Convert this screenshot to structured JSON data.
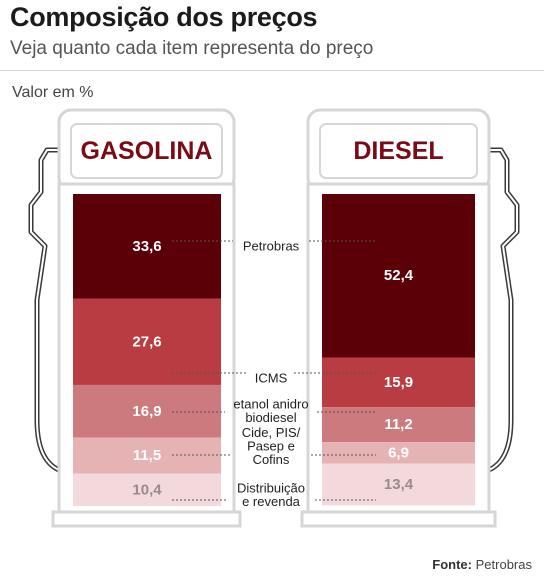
{
  "header": {
    "title": "Composição dos preços",
    "subtitle": "Veja quanto cada item representa do preço",
    "unit_label": "Valor em %",
    "source_prefix": "Fonte:",
    "source_name": "Petrobras"
  },
  "colors": {
    "pump_title": "#7a0a14",
    "pump_body": "#ffffff",
    "pump_border": "#d6d6d6",
    "leader_line": "#555555",
    "segments": [
      "#5c0008",
      "#b83c41",
      "#cc7a7d",
      "#e6b3b5",
      "#f3d9dc"
    ],
    "segment_text": [
      "#ffffff",
      "#ffffff",
      "#ffffff",
      "#ffffff",
      "#9a8a8b"
    ]
  },
  "chart_data": {
    "type": "bar",
    "stacked": true,
    "orientation": "vertical",
    "ylim": [
      0,
      100
    ],
    "categories": [
      "Petrobras",
      "ICMS",
      "etanol anidro\nbiodiesel",
      "Cide, PIS/\nPasep e\nCofins",
      "Distribuição\ne revenda"
    ],
    "series": [
      {
        "name": "GASOLINA",
        "values": [
          33.6,
          27.6,
          16.9,
          11.5,
          10.4
        ],
        "labels": [
          "33,6",
          "27,6",
          "16,9",
          "11,5",
          "10,4"
        ]
      },
      {
        "name": "DIESEL",
        "values": [
          52.4,
          15.9,
          11.2,
          6.9,
          13.4
        ],
        "labels": [
          "52,4",
          "15,9",
          "11,2",
          "6,9",
          "13,4"
        ]
      }
    ],
    "title": "Composição dos preços",
    "ylabel": "Valor em %",
    "grid": false,
    "legend": "none"
  }
}
